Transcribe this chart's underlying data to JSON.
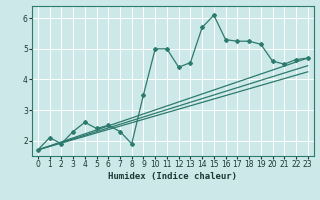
{
  "title": "",
  "xlabel": "Humidex (Indice chaleur)",
  "ylabel": "",
  "bg_color": "#cce8e8",
  "grid_color": "#ffffff",
  "line_color": "#2d7a6e",
  "xlim": [
    -0.5,
    23.5
  ],
  "ylim": [
    1.5,
    6.4
  ],
  "xticks": [
    0,
    1,
    2,
    3,
    4,
    5,
    6,
    7,
    8,
    9,
    10,
    11,
    12,
    13,
    14,
    15,
    16,
    17,
    18,
    19,
    20,
    21,
    22,
    23
  ],
  "yticks": [
    2,
    3,
    4,
    5,
    6
  ],
  "series": [
    [
      0,
      1.7
    ],
    [
      1,
      2.1
    ],
    [
      2,
      1.9
    ],
    [
      3,
      2.3
    ],
    [
      4,
      2.6
    ],
    [
      5,
      2.4
    ],
    [
      6,
      2.5
    ],
    [
      7,
      2.3
    ],
    [
      8,
      1.9
    ],
    [
      9,
      3.5
    ],
    [
      10,
      5.0
    ],
    [
      11,
      5.0
    ],
    [
      12,
      4.4
    ],
    [
      13,
      4.55
    ],
    [
      14,
      5.7
    ],
    [
      15,
      6.1
    ],
    [
      16,
      5.3
    ],
    [
      17,
      5.25
    ],
    [
      18,
      5.25
    ],
    [
      19,
      5.15
    ],
    [
      20,
      4.6
    ],
    [
      21,
      4.5
    ],
    [
      22,
      4.65
    ],
    [
      23,
      4.7
    ]
  ],
  "linear1": [
    [
      0,
      1.7
    ],
    [
      23,
      4.7
    ]
  ],
  "linear2": [
    [
      0,
      1.7
    ],
    [
      23,
      4.45
    ]
  ],
  "linear3": [
    [
      0,
      1.7
    ],
    [
      23,
      4.25
    ]
  ]
}
